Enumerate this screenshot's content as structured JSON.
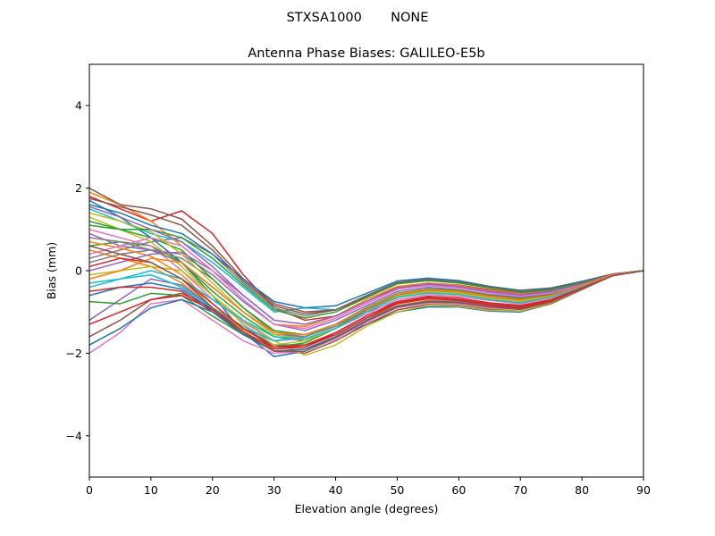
{
  "figure": {
    "suptitle": "STXSA1000       NONE"
  },
  "chart_data": {
    "type": "line",
    "title": "Antenna Phase Biases: GALILEO-E5b",
    "xlabel": "Elevation angle (degrees)",
    "ylabel": "Bias (mm)",
    "xlim": [
      0,
      90
    ],
    "ylim": [
      -5,
      5
    ],
    "xticks": [
      0,
      10,
      20,
      30,
      40,
      50,
      60,
      70,
      80,
      90
    ],
    "yticks": [
      -4,
      -2,
      0,
      2,
      4
    ],
    "ytick_labels": [
      "−4",
      "−2",
      "0",
      "2",
      "4"
    ],
    "grid": false,
    "legend": "none",
    "x": [
      0,
      5,
      10,
      15,
      20,
      25,
      30,
      35,
      40,
      45,
      50,
      55,
      60,
      65,
      70,
      75,
      80,
      85,
      90
    ],
    "series": [
      {
        "color": "#1f77b4",
        "values": [
          1.7,
          1.3,
          0.8,
          0.2,
          -0.6,
          -1.5,
          -2.08,
          -1.95,
          -1.6,
          -1.3,
          -1.0,
          -0.88,
          -0.88,
          -0.98,
          -1.0,
          -0.8,
          -0.45,
          -0.12,
          0.0
        ]
      },
      {
        "color": "#ff7f0e",
        "values": [
          0.5,
          0.3,
          0.1,
          -0.3,
          -0.9,
          -1.4,
          -1.8,
          -1.85,
          -1.55,
          -1.15,
          -0.85,
          -0.72,
          -0.76,
          -0.86,
          -0.9,
          -0.74,
          -0.44,
          -0.12,
          0.0
        ]
      },
      {
        "color": "#2ca02c",
        "values": [
          0.6,
          0.7,
          0.6,
          0.2,
          -0.5,
          -1.1,
          -1.6,
          -1.7,
          -1.4,
          -0.95,
          -0.6,
          -0.48,
          -0.52,
          -0.64,
          -0.7,
          -0.6,
          -0.38,
          -0.12,
          0.0
        ]
      },
      {
        "color": "#d62728",
        "values": [
          1.8,
          1.5,
          1.2,
          1.45,
          0.9,
          -0.1,
          -0.9,
          -1.2,
          -1.1,
          -0.75,
          -0.4,
          -0.3,
          -0.35,
          -0.46,
          -0.55,
          -0.48,
          -0.3,
          -0.08,
          0.0
        ]
      },
      {
        "color": "#9467bd",
        "values": [
          -1.2,
          -0.7,
          -0.2,
          -0.35,
          -0.9,
          -1.4,
          -1.7,
          -1.6,
          -1.3,
          -1.0,
          -0.75,
          -0.65,
          -0.7,
          -0.8,
          -0.85,
          -0.72,
          -0.42,
          -0.12,
          0.0
        ]
      },
      {
        "color": "#8c564b",
        "values": [
          -1.6,
          -1.2,
          -0.7,
          -0.55,
          -0.9,
          -1.45,
          -1.95,
          -2.0,
          -1.7,
          -1.3,
          -0.95,
          -0.82,
          -0.84,
          -0.94,
          -0.98,
          -0.8,
          -0.46,
          -0.12,
          0.0
        ]
      },
      {
        "color": "#e377c2",
        "values": [
          1.0,
          0.8,
          0.6,
          0.0,
          -0.7,
          -1.25,
          -1.7,
          -1.65,
          -1.4,
          -1.05,
          -0.7,
          -0.58,
          -0.62,
          -0.72,
          -0.8,
          -0.66,
          -0.4,
          -0.1,
          0.0
        ]
      },
      {
        "color": "#7f7f7f",
        "values": [
          0.2,
          0.4,
          0.5,
          0.3,
          -0.2,
          -0.9,
          -1.5,
          -1.6,
          -1.3,
          -0.9,
          -0.55,
          -0.45,
          -0.5,
          -0.6,
          -0.66,
          -0.58,
          -0.38,
          -0.1,
          0.0
        ]
      },
      {
        "color": "#bcbd22",
        "values": [
          -0.1,
          0.0,
          0.1,
          0.0,
          -0.6,
          -1.2,
          -1.7,
          -2.05,
          -1.8,
          -1.35,
          -1.0,
          -0.84,
          -0.86,
          -0.96,
          -0.98,
          -0.78,
          -0.44,
          -0.12,
          0.0
        ]
      },
      {
        "color": "#17becf",
        "values": [
          1.5,
          1.2,
          0.9,
          0.7,
          0.2,
          -0.4,
          -1.0,
          -0.9,
          -0.95,
          -0.65,
          -0.3,
          -0.22,
          -0.28,
          -0.4,
          -0.5,
          -0.44,
          -0.28,
          -0.08,
          0.0
        ]
      },
      {
        "color": "#1f77b4",
        "values": [
          -0.6,
          -0.4,
          -0.3,
          -0.45,
          -0.95,
          -1.4,
          -1.8,
          -1.8,
          -1.55,
          -1.15,
          -0.8,
          -0.66,
          -0.7,
          -0.82,
          -0.88,
          -0.72,
          -0.42,
          -0.12,
          0.0
        ]
      },
      {
        "color": "#ff7f0e",
        "values": [
          1.9,
          1.6,
          1.2,
          0.6,
          0.0,
          -0.7,
          -1.3,
          -1.35,
          -1.1,
          -0.7,
          -0.38,
          -0.3,
          -0.36,
          -0.48,
          -0.56,
          -0.5,
          -0.32,
          -0.08,
          0.0
        ]
      },
      {
        "color": "#2ca02c",
        "values": [
          -0.75,
          -0.8,
          -0.55,
          -0.6,
          -1.1,
          -1.55,
          -1.85,
          -1.75,
          -1.4,
          -0.95,
          -0.55,
          -0.45,
          -0.52,
          -0.64,
          -0.7,
          -0.6,
          -0.36,
          -0.1,
          0.0
        ]
      },
      {
        "color": "#d62728",
        "values": [
          -1.3,
          -1.0,
          -0.7,
          -0.6,
          -0.95,
          -1.5,
          -1.9,
          -1.85,
          -1.5,
          -1.1,
          -0.75,
          -0.62,
          -0.66,
          -0.78,
          -0.84,
          -0.7,
          -0.42,
          -0.12,
          0.0
        ]
      },
      {
        "color": "#9467bd",
        "values": [
          0.9,
          0.6,
          0.5,
          0.4,
          -0.1,
          -0.75,
          -1.3,
          -1.45,
          -1.2,
          -0.85,
          -0.5,
          -0.4,
          -0.46,
          -0.58,
          -0.64,
          -0.56,
          -0.34,
          -0.1,
          0.0
        ]
      },
      {
        "color": "#8c564b",
        "values": [
          2.0,
          1.6,
          1.5,
          1.25,
          0.6,
          -0.2,
          -0.8,
          -1.0,
          -0.95,
          -0.65,
          -0.3,
          -0.2,
          -0.25,
          -0.38,
          -0.48,
          -0.42,
          -0.26,
          -0.08,
          0.0
        ]
      },
      {
        "color": "#e377c2",
        "values": [
          -2.0,
          -1.5,
          -0.8,
          -0.7,
          -1.2,
          -1.7,
          -2.0,
          -1.95,
          -1.65,
          -1.25,
          -0.9,
          -0.78,
          -0.8,
          -0.9,
          -0.94,
          -0.76,
          -0.44,
          -0.12,
          0.0
        ]
      },
      {
        "color": "#7f7f7f",
        "values": [
          0.3,
          0.5,
          0.7,
          0.8,
          0.4,
          -0.3,
          -0.9,
          -1.1,
          -0.95,
          -0.6,
          -0.28,
          -0.2,
          -0.26,
          -0.4,
          -0.5,
          -0.44,
          -0.28,
          -0.08,
          0.0
        ]
      },
      {
        "color": "#bcbd22",
        "values": [
          1.3,
          1.0,
          0.7,
          0.1,
          -0.6,
          -1.3,
          -1.8,
          -1.7,
          -1.4,
          -1.0,
          -0.65,
          -0.52,
          -0.56,
          -0.68,
          -0.76,
          -0.64,
          -0.38,
          -0.1,
          0.0
        ]
      },
      {
        "color": "#17becf",
        "values": [
          -0.3,
          -0.2,
          -0.1,
          -0.4,
          -0.9,
          -1.35,
          -1.7,
          -1.6,
          -1.3,
          -0.9,
          -0.55,
          -0.44,
          -0.5,
          -0.62,
          -0.7,
          -0.6,
          -0.36,
          -0.1,
          0.0
        ]
      },
      {
        "color": "#1f77b4",
        "values": [
          1.6,
          1.4,
          1.1,
          0.9,
          0.4,
          -0.2,
          -0.75,
          -0.9,
          -0.85,
          -0.55,
          -0.25,
          -0.18,
          -0.24,
          -0.38,
          -0.48,
          -0.42,
          -0.26,
          -0.08,
          0.0
        ]
      },
      {
        "color": "#ff7f0e",
        "values": [
          0.7,
          0.55,
          0.35,
          -0.1,
          -0.8,
          -1.45,
          -1.95,
          -1.9,
          -1.6,
          -1.2,
          -0.85,
          -0.72,
          -0.74,
          -0.86,
          -0.92,
          -0.74,
          -0.42,
          -0.12,
          0.0
        ]
      },
      {
        "color": "#2ca02c",
        "values": [
          1.2,
          1.0,
          0.8,
          0.5,
          -0.2,
          -0.9,
          -1.45,
          -1.55,
          -1.3,
          -0.9,
          -0.55,
          -0.44,
          -0.48,
          -0.6,
          -0.68,
          -0.58,
          -0.36,
          -0.1,
          0.0
        ]
      },
      {
        "color": "#d62728",
        "values": [
          -0.5,
          -0.4,
          -0.4,
          -0.5,
          -1.0,
          -1.5,
          -1.85,
          -1.8,
          -1.5,
          -1.1,
          -0.78,
          -0.66,
          -0.7,
          -0.82,
          -0.88,
          -0.72,
          -0.42,
          -0.12,
          0.0
        ]
      },
      {
        "color": "#9467bd",
        "values": [
          0.0,
          0.2,
          0.4,
          0.45,
          0.0,
          -0.6,
          -1.2,
          -1.3,
          -1.1,
          -0.75,
          -0.42,
          -0.34,
          -0.4,
          -0.52,
          -0.6,
          -0.52,
          -0.32,
          -0.08,
          0.0
        ]
      },
      {
        "color": "#8c564b",
        "values": [
          1.75,
          1.55,
          1.35,
          1.1,
          0.5,
          -0.25,
          -0.85,
          -1.05,
          -0.95,
          -0.62,
          -0.3,
          -0.22,
          -0.28,
          -0.4,
          -0.5,
          -0.44,
          -0.28,
          -0.08,
          0.0
        ]
      },
      {
        "color": "#e377c2",
        "values": [
          0.4,
          0.6,
          0.8,
          0.6,
          0.0,
          -0.7,
          -1.3,
          -1.4,
          -1.15,
          -0.8,
          -0.45,
          -0.36,
          -0.42,
          -0.54,
          -0.62,
          -0.54,
          -0.34,
          -0.1,
          0.0
        ]
      },
      {
        "color": "#7f7f7f",
        "values": [
          0.8,
          0.7,
          0.5,
          0.2,
          -0.4,
          -1.0,
          -1.55,
          -1.6,
          -1.35,
          -0.95,
          -0.6,
          -0.48,
          -0.52,
          -0.64,
          -0.72,
          -0.6,
          -0.36,
          -0.1,
          0.0
        ]
      },
      {
        "color": "#bcbd22",
        "values": [
          1.4,
          1.2,
          0.95,
          0.4,
          -0.3,
          -1.0,
          -1.55,
          -1.65,
          -1.4,
          -1.0,
          -0.62,
          -0.5,
          -0.54,
          -0.66,
          -0.74,
          -0.62,
          -0.38,
          -0.1,
          0.0
        ]
      },
      {
        "color": "#17becf",
        "values": [
          -0.4,
          -0.2,
          0.0,
          -0.2,
          -0.7,
          -1.2,
          -1.6,
          -1.65,
          -1.4,
          -1.0,
          -0.65,
          -0.54,
          -0.58,
          -0.7,
          -0.78,
          -0.64,
          -0.38,
          -0.1,
          0.0
        ]
      },
      {
        "color": "#1f77b4",
        "values": [
          -1.8,
          -1.4,
          -0.9,
          -0.7,
          -1.0,
          -1.55,
          -1.95,
          -1.9,
          -1.6,
          -1.2,
          -0.86,
          -0.74,
          -0.76,
          -0.88,
          -0.92,
          -0.74,
          -0.42,
          -0.12,
          0.0
        ]
      },
      {
        "color": "#2ca02c",
        "values": [
          1.1,
          1.0,
          1.0,
          0.8,
          0.3,
          -0.35,
          -0.95,
          -1.15,
          -1.0,
          -0.65,
          -0.32,
          -0.24,
          -0.3,
          -0.42,
          -0.52,
          -0.46,
          -0.3,
          -0.08,
          0.0
        ]
      },
      {
        "color": "#d62728",
        "values": [
          0.1,
          0.3,
          0.2,
          -0.2,
          -0.8,
          -1.4,
          -1.85,
          -1.85,
          -1.55,
          -1.15,
          -0.8,
          -0.68,
          -0.72,
          -0.84,
          -0.9,
          -0.74,
          -0.42,
          -0.12,
          0.0
        ]
      },
      {
        "color": "#9467bd",
        "values": [
          1.55,
          1.3,
          1.0,
          0.7,
          0.1,
          -0.6,
          -1.2,
          -1.3,
          -1.1,
          -0.75,
          -0.42,
          -0.32,
          -0.38,
          -0.5,
          -0.58,
          -0.5,
          -0.32,
          -0.08,
          0.0
        ]
      },
      {
        "color": "#ff7f0e",
        "values": [
          -0.2,
          0.0,
          0.3,
          0.2,
          -0.4,
          -1.0,
          -1.5,
          -1.55,
          -1.3,
          -0.92,
          -0.56,
          -0.46,
          -0.5,
          -0.62,
          -0.7,
          -0.6,
          -0.36,
          -0.1,
          0.0
        ]
      },
      {
        "color": "#8c564b",
        "values": [
          0.6,
          0.4,
          0.2,
          -0.2,
          -0.9,
          -1.5,
          -1.95,
          -1.95,
          -1.62,
          -1.22,
          -0.88,
          -0.76,
          -0.78,
          -0.88,
          -0.94,
          -0.76,
          -0.44,
          -0.12,
          0.0
        ]
      }
    ]
  }
}
